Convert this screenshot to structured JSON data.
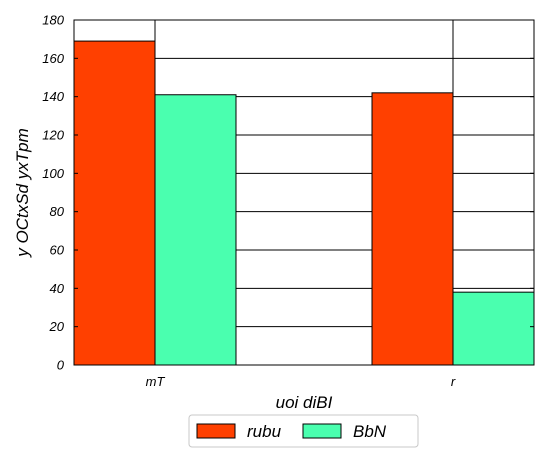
{
  "chart_data": {
    "type": "bar",
    "title": "",
    "xlabel": "uoi diBI",
    "ylabel": "y OCtxSd yxTpm",
    "categories": [
      "mT",
      "r"
    ],
    "series": [
      {
        "name": "rubu",
        "values": [
          169,
          142
        ],
        "color": "#ff4000"
      },
      {
        "name": "BbN",
        "values": [
          141,
          38
        ],
        "color": "#4affaf"
      }
    ],
    "ylim": [
      0,
      180
    ],
    "yticks": [
      0,
      20,
      40,
      60,
      80,
      100,
      120,
      140,
      160,
      180
    ],
    "grid": true,
    "legend_position": "bottom-center"
  }
}
